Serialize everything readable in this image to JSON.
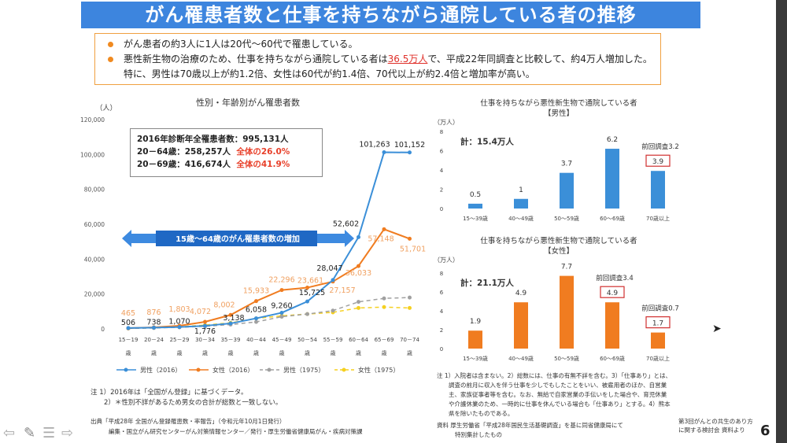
{
  "header": {
    "title": "がん罹患者数と仕事を持ちながら通院している者の推移"
  },
  "bullets": {
    "b1": "がん患者の約3人に1人は20代～60代で罹患している。",
    "b2_pre": "悪性新生物の治療のため、仕事を持ちながら通院している者は",
    "b2_hl": "36.5万人",
    "b2_post": "で、平成22年同調査と比較して、約4万人増加した。特に、男性は70歳以上が約1.2倍、女性は60代が約1.4倍、70代以上が約2.4倍と増加率が高い。"
  },
  "info_box": {
    "line1": "2016年診断年全罹患者数：995,131人",
    "line2a": "20－64歳：258,257人",
    "line2b": "全体の26.0%",
    "line3a": "20－69歳：416,674人",
    "line3b": "全体の41.9%"
  },
  "arrow_label": "15歳～64歳のがん罹患者数の増加",
  "colors": {
    "title": "#3d85de",
    "male": "#3b8fd8",
    "female": "#f07c20",
    "male1975": "#a0a0a0",
    "female1975": "#f5d020",
    "highlight": "#e0302a"
  },
  "chart_data": [
    {
      "type": "line",
      "title": "性別・年齢別がん罹患者数",
      "ylabel": "（人）",
      "ylim": [
        0,
        120000
      ],
      "yticks": [
        "0",
        "20,000",
        "40,000",
        "60,000",
        "80,000",
        "100,000",
        "120,000"
      ],
      "categories": [
        "15－19歳",
        "20－24歳",
        "25－29歳",
        "30－34歳",
        "35－39歳",
        "40－44歳",
        "45－49歳",
        "50－54歳",
        "55－59歳",
        "60－64歳",
        "65－69歳",
        "70－74歳"
      ],
      "legend_position": "bottom",
      "series": [
        {
          "name": "男性（2016）",
          "values": [
            506,
            738,
            1070,
            1776,
            3138,
            6058,
            9260,
            15725,
            28047,
            52602,
            101263,
            101152
          ],
          "labels": [
            "506",
            "738",
            "1,070",
            "1,776",
            "3,138",
            "6,058",
            "9,260",
            "15,725",
            "28,047",
            "52,602",
            "101,263",
            "101,152"
          ]
        },
        {
          "name": "女性（2016）",
          "values": [
            465,
            876,
            1803,
            4072,
            8002,
            15933,
            22296,
            23661,
            27157,
            36033,
            57148,
            51701
          ],
          "labels": [
            "465",
            "876",
            "1,803",
            "4,072",
            "8,002",
            "15,933",
            "22,296",
            "23,661",
            "27,157",
            "36,033",
            "57,148",
            "51,701"
          ]
        },
        {
          "name": "男性（1975）",
          "values": [
            300,
            500,
            900,
            1500,
            2500,
            4000,
            7000,
            8500,
            10500,
            15500,
            17500,
            18000
          ]
        },
        {
          "name": "女性（1975）",
          "values": [
            300,
            600,
            1200,
            2200,
            3500,
            6000,
            7500,
            8500,
            9500,
            12000,
            12500,
            12000
          ]
        }
      ]
    },
    {
      "type": "bar",
      "title": "仕事を持ちながら悪性新生物で通院している者",
      "subtitle": "【男性】",
      "ylabel": "（万人）",
      "ylim": [
        0,
        8
      ],
      "yticks": [
        "0",
        "2",
        "4",
        "6",
        "8"
      ],
      "total": "計：15.4万人",
      "categories": [
        "15～39歳",
        "40～49歳",
        "50～59歳",
        "60～69歳",
        "70歳以上"
      ],
      "values": [
        0.5,
        1,
        3.7,
        6.2,
        3.9
      ],
      "labels": [
        "0.5",
        "1",
        "3.7",
        "6.2",
        "3.9"
      ],
      "previous": [
        null,
        null,
        null,
        null,
        "前回調査3.2"
      ]
    },
    {
      "type": "bar",
      "title": "仕事を持ちながら悪性新生物で通院している者",
      "subtitle": "【女性】",
      "ylabel": "（万人）",
      "ylim": [
        0,
        8
      ],
      "yticks": [
        "0",
        "2",
        "4",
        "6",
        "8"
      ],
      "total": "計：21.1万人",
      "categories": [
        "15～39歳",
        "40～49歳",
        "50～59歳",
        "60～69歳",
        "70歳以上"
      ],
      "values": [
        1.9,
        4.9,
        7.7,
        4.9,
        1.7
      ],
      "labels": [
        "1.9",
        "4.9",
        "7.7",
        "4.9",
        "1.7"
      ],
      "previous": [
        null,
        null,
        null,
        "前回調査3.4",
        "前回調査0.7"
      ]
    }
  ],
  "notes_left": {
    "n1": "注 1）2016年は「全国がん登録」に基づくデータ。",
    "n2": "2）＊性別不詳があるため男女の合計が総数と一致しない。",
    "s1": "出典「平成28年 全国がん登録罹患数・率報告」（令和元年10月1日発行）",
    "s2": "編集・国立がん研究センターがん対策情報センター／発行・厚生労働省健康局がん・疾病対策課"
  },
  "notes_right": {
    "n1": "注 1）入院者は含まない。2）総数には、仕事の有無不詳を含む。3）「仕事あり」とは、",
    "n2": "調査の前月に収入を伴う仕事を少しでもしたことをいい、被雇用者のほか、自営業",
    "n3": "主、家族従事者等を含む。なお、無給で自家営業の手伝いをした場合や、育児休業",
    "n4": "や介護休業のため、一時的に仕事を休んでいる場合も「仕事あり」とする。4）熊本",
    "n5": "県を除いたものである。",
    "s1": "資料 厚生労働省「平成28年国民生活基礎調査」を基に同省健康局にて",
    "s2": "特別集計したもの",
    "ref1": "第3回がんとの共生のあり方",
    "ref2": "に関する検討会 資料より"
  },
  "page_number": "6"
}
